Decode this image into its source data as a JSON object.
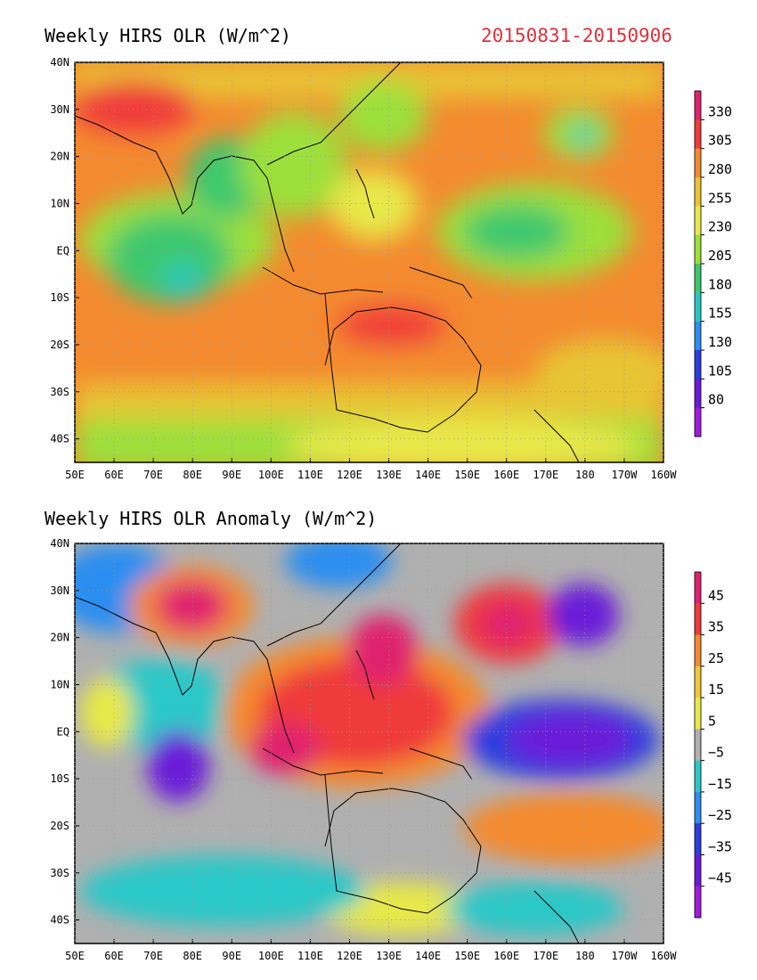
{
  "top_panel": {
    "title": "Weekly HIRS OLR (W/m^2)",
    "date_range": "20150831-20150906",
    "lat_labels": [
      "40N",
      "30N",
      "20N",
      "10N",
      "EQ",
      "10S",
      "20S",
      "30S",
      "40S"
    ],
    "lon_labels": [
      "50E",
      "60E",
      "70E",
      "80E",
      "90E",
      "100E",
      "110E",
      "120E",
      "130E",
      "140E",
      "150E",
      "160E",
      "170E",
      "180",
      "170W",
      "160W"
    ],
    "colorbar_labels": [
      "330",
      "305",
      "280",
      "255",
      "230",
      "205",
      "180",
      "155",
      "130",
      "105",
      "80"
    ],
    "colorbar_colors": [
      "#e0216e",
      "#f03b3b",
      "#f48a2f",
      "#e8c535",
      "#e8e84a",
      "#9ce03a",
      "#3cc86e",
      "#28c8c0",
      "#2c8ef0",
      "#2c3ce0",
      "#6a1ad8",
      "#a01ae0"
    ]
  },
  "bottom_panel": {
    "title": "Weekly HIRS OLR Anomaly (W/m^2)",
    "lat_labels": [
      "40N",
      "30N",
      "20N",
      "10N",
      "EQ",
      "10S",
      "20S",
      "30S",
      "40S"
    ],
    "lon_labels": [
      "50E",
      "60E",
      "70E",
      "80E",
      "90E",
      "100E",
      "110E",
      "120E",
      "130E",
      "140E",
      "150E",
      "160E",
      "170E",
      "180",
      "170W",
      "160W"
    ],
    "colorbar_labels": [
      "45",
      "35",
      "25",
      "15",
      "5",
      "−5",
      "−15",
      "−25",
      "−35",
      "−45"
    ],
    "colorbar_colors": [
      "#e0216e",
      "#f03b3b",
      "#f48a2f",
      "#f2c83a",
      "#e8e84a",
      "#b0b0b0",
      "#2cc8c8",
      "#2c8ef0",
      "#2c3ce0",
      "#6a1ad8",
      "#a01ae0"
    ]
  }
}
